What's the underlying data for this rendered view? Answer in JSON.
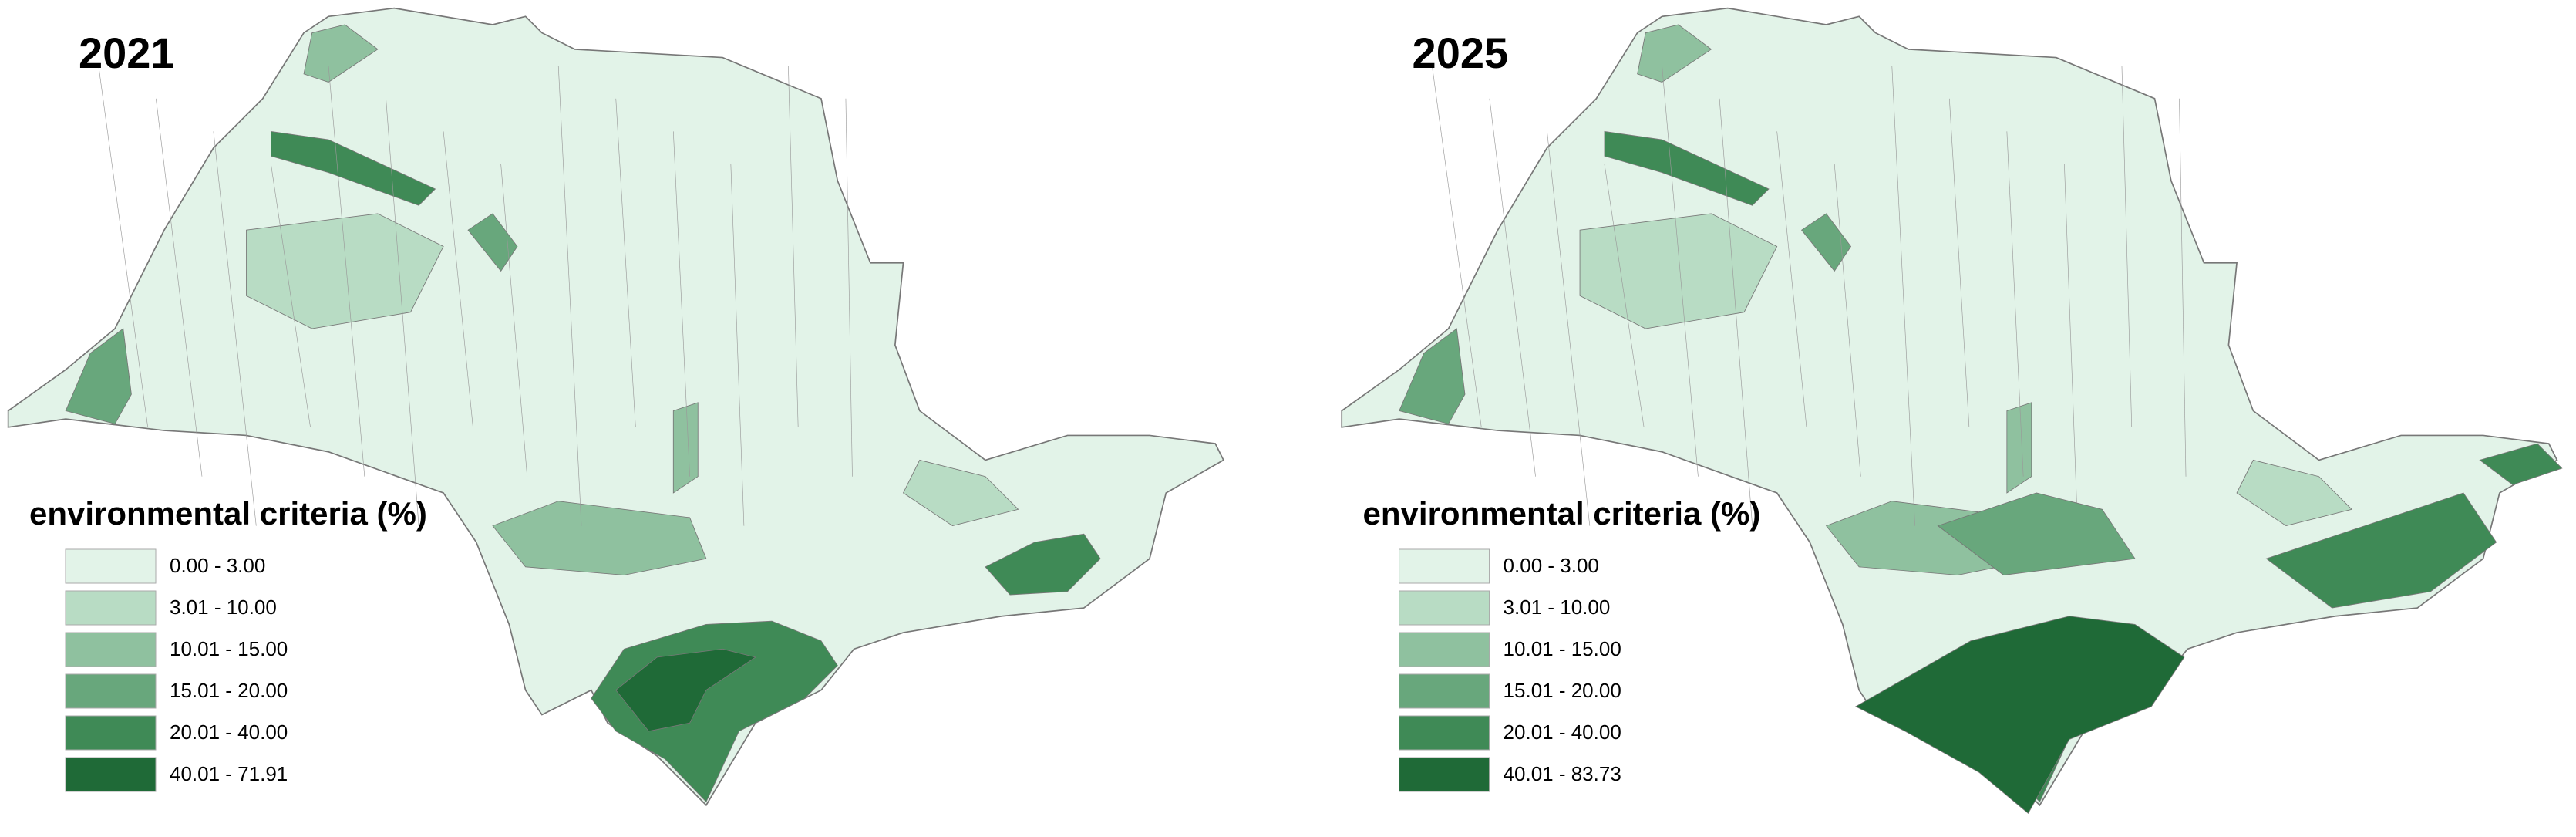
{
  "maps": [
    {
      "title": "2021",
      "legend": {
        "title": "environmental criteria (%)",
        "classes": [
          {
            "label": "0.00 - 3.00",
            "color": "#e2f3e8"
          },
          {
            "label": "3.01 - 10.00",
            "color": "#b8dcc4"
          },
          {
            "label": "10.01 - 15.00",
            "color": "#8fc19f"
          },
          {
            "label": "15.01 - 20.00",
            "color": "#68a77c"
          },
          {
            "label": "20.01 - 40.00",
            "color": "#3f8a56"
          },
          {
            "label": "40.01 - 71.91",
            "color": "#1f6a37"
          }
        ]
      }
    },
    {
      "title": "2025",
      "legend": {
        "title": "environmental criteria (%)",
        "classes": [
          {
            "label": "0.00 - 3.00",
            "color": "#e2f3e8"
          },
          {
            "label": "3.01 - 10.00",
            "color": "#b8dcc4"
          },
          {
            "label": "10.01 - 15.00",
            "color": "#8fc19f"
          },
          {
            "label": "15.01 - 20.00",
            "color": "#68a77c"
          },
          {
            "label": "20.01 - 40.00",
            "color": "#3f8a56"
          },
          {
            "label": "40.01 - 83.73",
            "color": "#1f6a37"
          }
        ]
      }
    }
  ]
}
